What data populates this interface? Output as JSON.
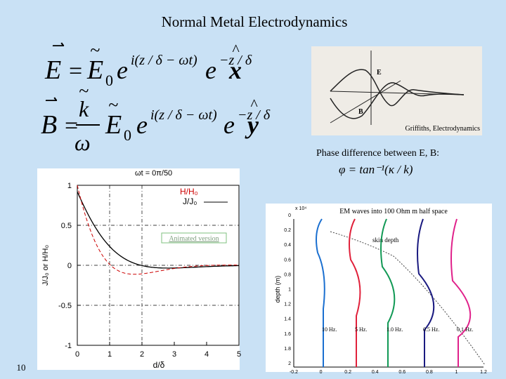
{
  "title": "Normal Metal Electrodynamics",
  "equations": [
    {
      "lhs": "E",
      "eq": "=",
      "coef": "E",
      "sub": "0",
      "exp1": "i(z / δ − ωt)",
      "exp2": "−z / δ",
      "unit": "x"
    },
    {
      "lhs": "B",
      "eq": "=",
      "num": "k",
      "den": "ω",
      "coef": "E",
      "sub": "0",
      "exp1": "i(z / δ − ωt)",
      "exp2": "−z / δ",
      "unit": "y"
    }
  ],
  "figure_caption": "Griffiths, Electrodynamics",
  "phase": {
    "text": "Phase difference between E, B:",
    "formula": "φ = tan⁻¹(κ / k)"
  },
  "left_plot": {
    "time_label": "ωt =   0π/50",
    "h_label": "H/H₀",
    "j_label": "J/J₀",
    "ylabel": "J/J₀ or H/H₀",
    "xlabel": "d/δ",
    "yticks": [
      "1",
      "0.5",
      "0",
      "-0.5",
      "-1"
    ],
    "xticks": [
      "0",
      "1",
      "2",
      "3",
      "4",
      "5"
    ],
    "link": "Animated version"
  },
  "right_plot": {
    "title": "EM waves into 100 Ohm m half space",
    "annotation": "skin depth",
    "ylabel": "depth (m)",
    "scale": "x 10⁴",
    "curves": [
      "10 Hz.",
      "5 Hz.",
      "1.0 Hz.",
      "0.5 Hz.",
      "0.1 Hz."
    ],
    "xticks": [
      "-0.2",
      "0",
      "0.2",
      "0.4",
      "0.6",
      "0.8",
      "1",
      "1.2"
    ],
    "yticks": [
      "0",
      "0.2",
      "0.4",
      "0.6",
      "0.8",
      "1",
      "1.2",
      "1.4",
      "1.6",
      "1.8",
      "2"
    ]
  },
  "slide_number": "10"
}
